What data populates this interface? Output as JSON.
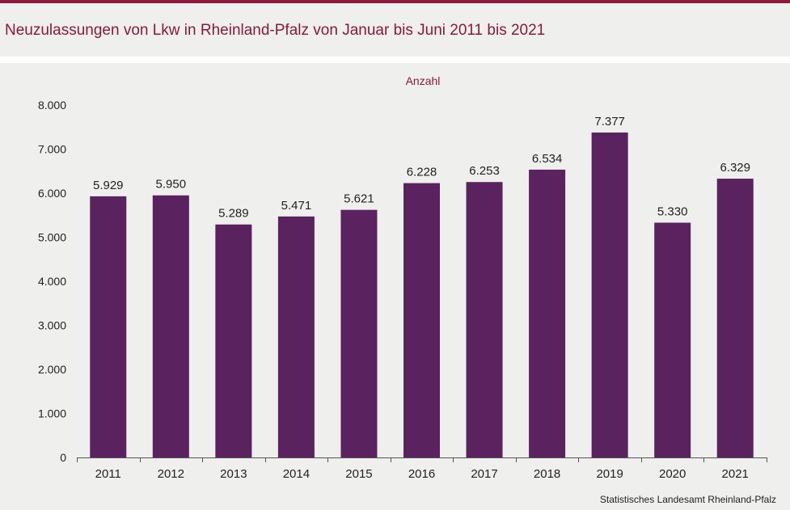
{
  "header": {
    "title": "Neuzulassungen von Lkw in Rheinland-Pfalz von Januar bis Juni 2011 bis 2021"
  },
  "footer": {
    "source": "Statistisches Landesamt  Rheinland-Pfalz"
  },
  "colors": {
    "accent": "#8b1a3a",
    "bar": "#5a225e",
    "background": "#efefed"
  },
  "chart_data": {
    "type": "bar",
    "title": "Neuzulassungen von Lkw in Rheinland-Pfalz von Januar bis Juni 2011 bis 2021",
    "unit_label": "Anzahl",
    "categories": [
      "2011",
      "2012",
      "2013",
      "2014",
      "2015",
      "2016",
      "2017",
      "2018",
      "2019",
      "2020",
      "2021"
    ],
    "values": [
      5929,
      5950,
      5289,
      5471,
      5621,
      6228,
      6253,
      6534,
      7377,
      5330,
      6329
    ],
    "value_labels": [
      "5.929",
      "5.950",
      "5.289",
      "5.471",
      "5.621",
      "6.228",
      "6.253",
      "6.534",
      "7.377",
      "5.330",
      "6.329"
    ],
    "ylim": [
      0,
      8000
    ],
    "yticks": [
      0,
      1000,
      2000,
      3000,
      4000,
      5000,
      6000,
      7000,
      8000
    ],
    "ytick_labels": [
      "0",
      "1.000",
      "2.000",
      "3.000",
      "4.000",
      "5.000",
      "6.000",
      "7.000",
      "8.000"
    ],
    "grid": false,
    "legend": "none"
  }
}
